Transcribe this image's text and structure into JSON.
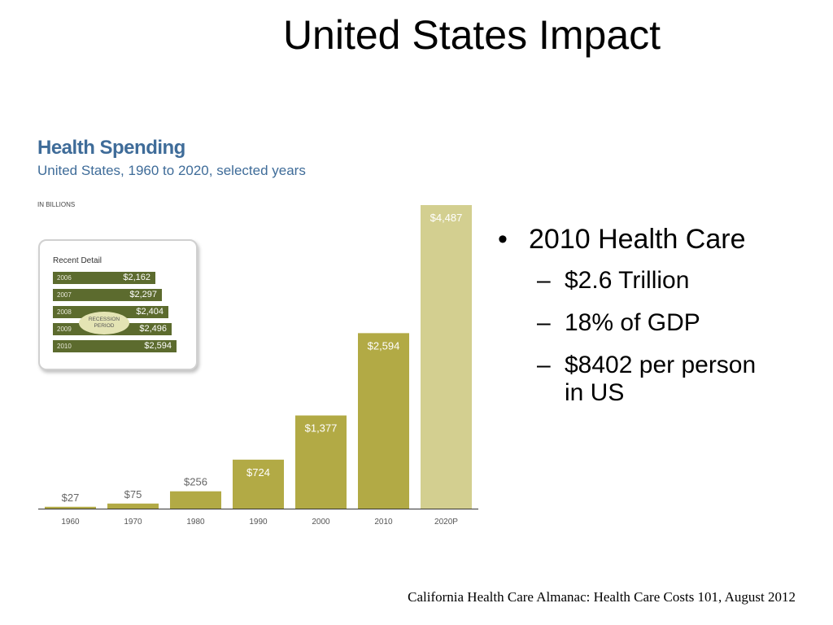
{
  "slide": {
    "title": "United States Impact",
    "source": "California Health Care Almanac: Health Care Costs 101, August 2012"
  },
  "bullets": {
    "main": "2010 Health Care",
    "subs": [
      "$2.6 Trillion",
      "18% of GDP",
      "$8402 per person in US"
    ],
    "sub3_line1": "$8402 per person",
    "sub3_line2": "in US"
  },
  "chart_data": {
    "type": "bar",
    "title": "Health Spending",
    "subtitle": "United States, 1960 to 2020, selected years",
    "unit": "IN BILLIONS",
    "categories": [
      "1960",
      "1970",
      "1980",
      "1990",
      "2000",
      "2010",
      "2020P"
    ],
    "values": [
      27,
      75,
      256,
      724,
      1377,
      2594,
      4487
    ],
    "value_labels": [
      "$27",
      "$75",
      "$256",
      "$724",
      "$1,377",
      "$2,594",
      "$4,487"
    ],
    "ylim": [
      0,
      4487
    ],
    "grid": false,
    "colors": {
      "bar": "#b2aa45",
      "projected_bar": "#d3cf90",
      "outside_label": "#666666",
      "baseline": "#333333"
    },
    "recent_detail": {
      "title": "Recent Detail",
      "badge": "RECESSION PERIOD",
      "rows": [
        {
          "year": "2006",
          "value": "$2,162"
        },
        {
          "year": "2007",
          "value": "$2,297"
        },
        {
          "year": "2008",
          "value": "$2,404"
        },
        {
          "year": "2009",
          "value": "$2,496"
        },
        {
          "year": "2010",
          "value": "$2,594"
        }
      ]
    }
  }
}
